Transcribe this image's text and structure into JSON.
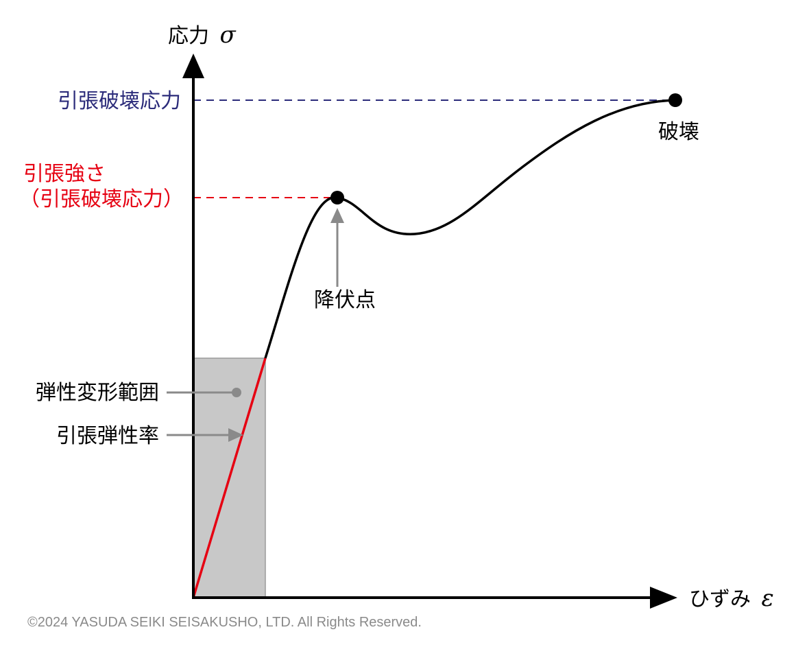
{
  "axes": {
    "y_label": "応力",
    "y_symbol": "σ",
    "x_label": "ひずみ",
    "x_symbol": "ε"
  },
  "levels": {
    "tensile_break_stress": "引張破壊応力",
    "tensile_strength_line1": "引張強さ",
    "tensile_strength_line2": "（引張破壊応力）"
  },
  "points": {
    "break_label": "破壊",
    "yield_label": "降伏点"
  },
  "regions": {
    "elastic_range": "弾性変形範囲",
    "tensile_modulus": "引張弾性率"
  },
  "colors": {
    "curve": "#000000",
    "break_level": "#2b2b7a",
    "strength_level": "#e60012",
    "modulus_line": "#e60012",
    "elastic_region": "#c8c8c8",
    "pointer": "#8a8a8a"
  },
  "footer": {
    "copyright": "©2024 YASUDA SEIKI SEISAKUSHO, LTD. All Rights Reserved."
  }
}
